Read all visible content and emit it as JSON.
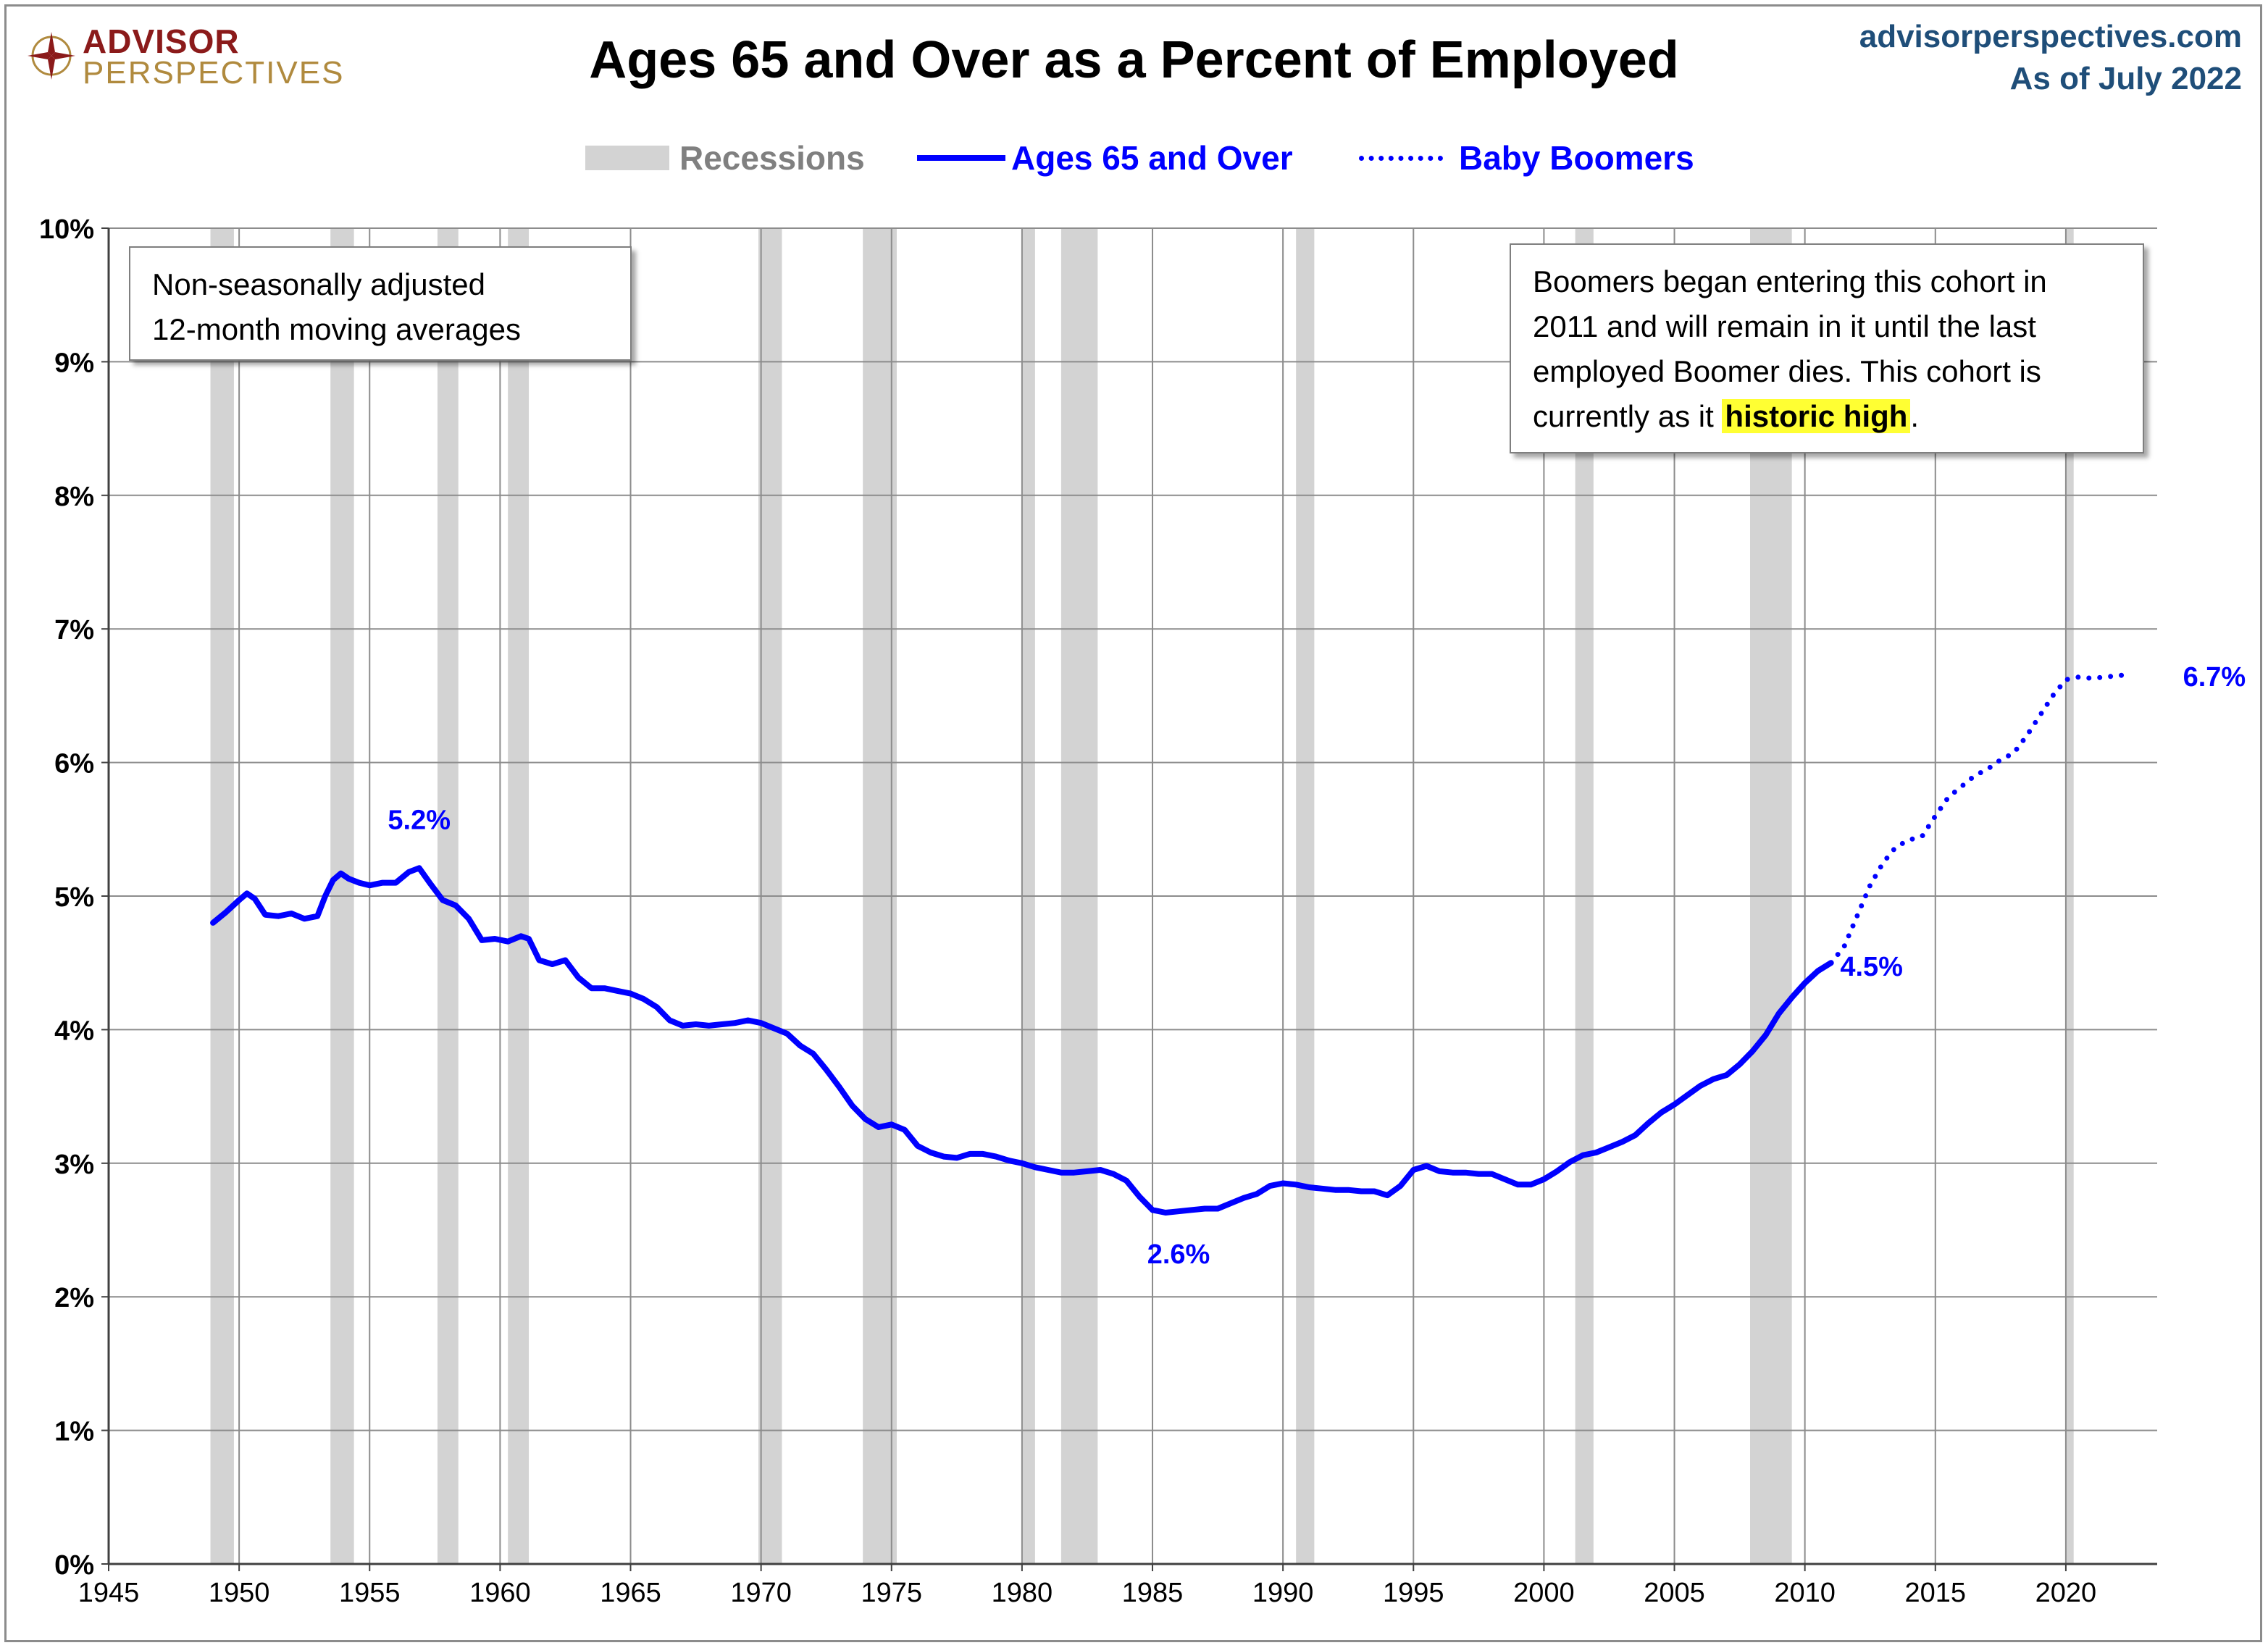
{
  "header": {
    "logo_top": "ADVISOR",
    "logo_bottom": "PERSPECTIVES",
    "title": "Ages 65 and Over as a Percent of Employed",
    "site": "advisorperspectives.com",
    "as_of": "As of July 2022"
  },
  "legend": {
    "recessions": "Recessions",
    "series1": "Ages 65 and Over",
    "series2": "Baby Boomers"
  },
  "notes": {
    "method_line1": "Non-seasonally adjusted",
    "method_line2": "12-month moving averages",
    "boomer_line1": "Boomers began entering this cohort in",
    "boomer_line2": "2011 and will remain in it until the last",
    "boomer_line3": "employed Boomer dies. This cohort is",
    "boomer_line4_pre": "currently as it ",
    "boomer_line4_hl": "historic high",
    "boomer_line4_post": "."
  },
  "colors": {
    "series": "#0000ff",
    "recession": "#d3d3d3",
    "grid": "#8c8c8c",
    "site": "#1f4e79",
    "recession_label": "#808080"
  },
  "chart_data": {
    "type": "line",
    "title": "Ages 65 and Over as a Percent of Employed",
    "xlabel": "",
    "ylabel": "",
    "xlim": [
      1945,
      2023.5
    ],
    "ylim": [
      0,
      10
    ],
    "x_ticks": [
      1945,
      1950,
      1955,
      1960,
      1965,
      1970,
      1975,
      1980,
      1985,
      1990,
      1995,
      2000,
      2005,
      2010,
      2015,
      2020
    ],
    "y_ticks": [
      0,
      1,
      2,
      3,
      4,
      5,
      6,
      7,
      8,
      9,
      10
    ],
    "y_tick_labels": [
      "0%",
      "1%",
      "2%",
      "3%",
      "4%",
      "5%",
      "6%",
      "7%",
      "8%",
      "9%",
      "10%"
    ],
    "grid": true,
    "recessions": [
      [
        1948.9,
        1949.8
      ],
      [
        1953.5,
        1954.4
      ],
      [
        1957.6,
        1958.4
      ],
      [
        1960.3,
        1961.1
      ],
      [
        1969.9,
        1970.8
      ],
      [
        1973.9,
        1975.2
      ],
      [
        1980.0,
        1980.5
      ],
      [
        1981.5,
        1982.9
      ],
      [
        1990.5,
        1991.2
      ],
      [
        2001.2,
        2001.9
      ],
      [
        2007.9,
        2009.5
      ],
      [
        2020.0,
        2020.3
      ]
    ],
    "series": [
      {
        "name": "Ages 65 and Over",
        "style": "solid",
        "x": [
          1949.0,
          1949.5,
          1950.0,
          1950.3,
          1950.6,
          1951.0,
          1951.5,
          1952.0,
          1952.5,
          1953.0,
          1953.3,
          1953.6,
          1953.9,
          1954.2,
          1954.6,
          1955.0,
          1955.5,
          1956.0,
          1956.5,
          1956.9,
          1957.3,
          1957.8,
          1958.3,
          1958.8,
          1959.3,
          1959.8,
          1960.3,
          1960.8,
          1961.1,
          1961.5,
          1962.0,
          1962.5,
          1963.0,
          1963.5,
          1964.0,
          1964.5,
          1965.0,
          1965.5,
          1966.0,
          1966.5,
          1967.0,
          1967.5,
          1968.0,
          1968.5,
          1969.0,
          1969.5,
          1970.0,
          1970.5,
          1971.0,
          1971.5,
          1972.0,
          1972.5,
          1973.0,
          1973.5,
          1974.0,
          1974.5,
          1975.0,
          1975.5,
          1976.0,
          1976.5,
          1977.0,
          1977.5,
          1978.0,
          1978.5,
          1979.0,
          1979.5,
          1980.0,
          1980.5,
          1981.0,
          1981.5,
          1982.0,
          1982.5,
          1983.0,
          1983.5,
          1984.0,
          1984.5,
          1985.0,
          1985.5,
          1986.0,
          1986.5,
          1987.0,
          1987.5,
          1988.0,
          1988.5,
          1989.0,
          1989.5,
          1990.0,
          1990.5,
          1991.0,
          1991.5,
          1992.0,
          1992.5,
          1993.0,
          1993.5,
          1994.0,
          1994.5,
          1995.0,
          1995.5,
          1996.0,
          1996.5,
          1997.0,
          1997.5,
          1998.0,
          1998.5,
          1999.0,
          1999.5,
          2000.0,
          2000.5,
          2001.0,
          2001.5,
          2002.0,
          2002.5,
          2003.0,
          2003.5,
          2004.0,
          2004.5,
          2005.0,
          2005.5,
          2006.0,
          2006.5,
          2007.0,
          2007.5,
          2008.0,
          2008.5,
          2009.0,
          2009.5,
          2010.0,
          2010.5,
          2011.0
        ],
        "values": [
          4.8,
          4.88,
          4.97,
          5.02,
          4.98,
          4.86,
          4.85,
          4.87,
          4.83,
          4.85,
          5.0,
          5.12,
          5.17,
          5.13,
          5.1,
          5.08,
          5.1,
          5.1,
          5.18,
          5.21,
          5.1,
          4.97,
          4.93,
          4.83,
          4.67,
          4.68,
          4.66,
          4.7,
          4.68,
          4.52,
          4.49,
          4.52,
          4.39,
          4.31,
          4.31,
          4.29,
          4.27,
          4.23,
          4.17,
          4.07,
          4.03,
          4.04,
          4.03,
          4.04,
          4.05,
          4.07,
          4.05,
          4.01,
          3.97,
          3.88,
          3.82,
          3.7,
          3.57,
          3.43,
          3.33,
          3.27,
          3.29,
          3.25,
          3.13,
          3.08,
          3.05,
          3.04,
          3.07,
          3.07,
          3.05,
          3.02,
          3.0,
          2.97,
          2.95,
          2.93,
          2.93,
          2.94,
          2.95,
          2.92,
          2.87,
          2.75,
          2.65,
          2.63,
          2.64,
          2.65,
          2.66,
          2.66,
          2.7,
          2.74,
          2.77,
          2.83,
          2.85,
          2.84,
          2.82,
          2.81,
          2.8,
          2.8,
          2.79,
          2.79,
          2.76,
          2.83,
          2.95,
          2.98,
          2.94,
          2.93,
          2.93,
          2.92,
          2.92,
          2.88,
          2.84,
          2.84,
          2.88,
          2.94,
          3.01,
          3.06,
          3.08,
          3.12,
          3.16,
          3.21,
          3.3,
          3.38,
          3.44,
          3.51,
          3.58,
          3.63,
          3.66,
          3.74,
          3.84,
          3.96,
          4.12,
          4.24,
          4.35,
          4.44,
          4.5
        ]
      },
      {
        "name": "Baby Boomers",
        "style": "dotted",
        "x": [
          2011.0,
          2011.5,
          2012.0,
          2012.5,
          2013.0,
          2013.5,
          2014.0,
          2014.5,
          2015.0,
          2015.5,
          2016.0,
          2016.5,
          2017.0,
          2017.5,
          2018.0,
          2018.5,
          2019.0,
          2019.5,
          2020.0,
          2020.5,
          2021.0,
          2021.5,
          2022.0,
          2022.5
        ],
        "values": [
          4.5,
          4.62,
          4.85,
          5.08,
          5.25,
          5.37,
          5.42,
          5.45,
          5.6,
          5.74,
          5.82,
          5.9,
          5.95,
          6.02,
          6.07,
          6.2,
          6.35,
          6.5,
          6.62,
          6.64,
          6.63,
          6.64,
          6.65,
          6.66
        ]
      }
    ],
    "annotations": [
      {
        "text": "5.2%",
        "x": 1956.9,
        "y": 5.21
      },
      {
        "text": "2.6%",
        "x": 1986.0,
        "y": 2.63
      },
      {
        "text": "4.5%",
        "x": 2011.0,
        "y": 4.5
      },
      {
        "text": "6.7%",
        "x": 2022.6,
        "y": 6.66
      }
    ]
  }
}
